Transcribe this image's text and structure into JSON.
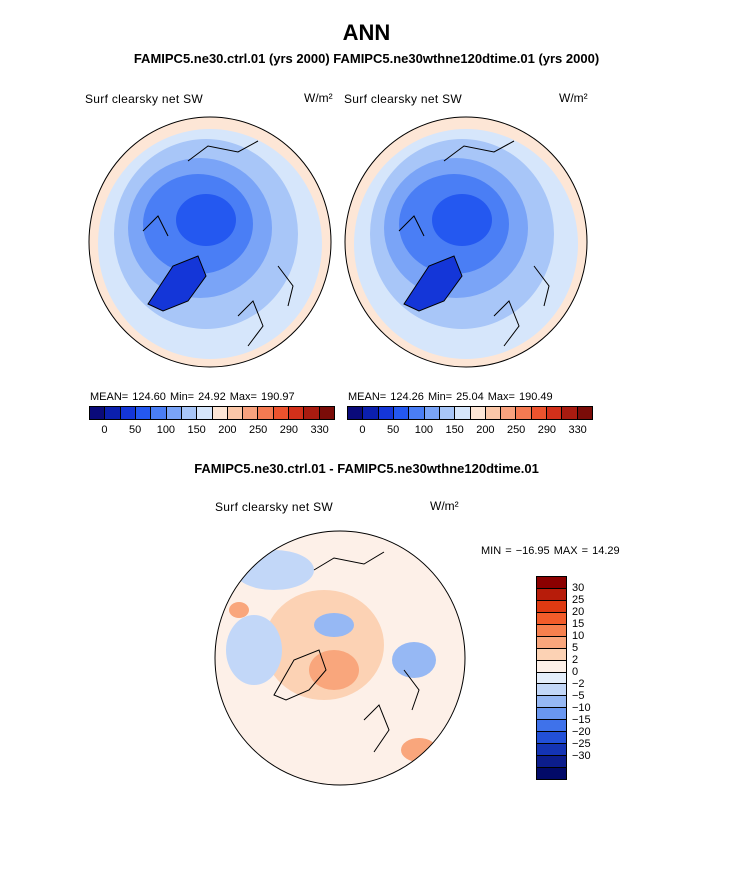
{
  "header": {
    "title": "ANN",
    "subtitle": "FAMIPC5.ne30.ctrl.01 (yrs 2000)   FAMIPC5.ne30wthne120dtime.01 (yrs 2000)"
  },
  "left_map": {
    "variable": "Surf clearsky net SW",
    "units": "W/m²",
    "stats": "MEAN= 124.60   Min=  24.92   Max= 190.97"
  },
  "right_map": {
    "variable": "Surf clearsky net SW",
    "units": "W/m²",
    "stats": "MEAN= 124.26   Min=  25.04   Max= 190.49"
  },
  "top_colorbar": {
    "colors": [
      "#0a0a7a",
      "#0b1fae",
      "#1436d8",
      "#2458f0",
      "#4a7ef5",
      "#7aa4f7",
      "#a8c6f8",
      "#d6e6fb",
      "#fde6d6",
      "#fbc7a8",
      "#f8a27e",
      "#f47a52",
      "#ec532e",
      "#d2301a",
      "#a81b10",
      "#7a0c08"
    ],
    "labels": [
      "0",
      "50",
      "100",
      "150",
      "200",
      "250",
      "290",
      "330"
    ]
  },
  "diff": {
    "subtitle": "FAMIPC5.ne30.ctrl.01 - FAMIPC5.ne30wthne120dtime.01",
    "variable": "Surf clearsky net SW",
    "units": "W/m²",
    "stats": "MIN = −16.95 MAX =   14.29"
  },
  "diff_colorbar": {
    "colors": [
      "#8b0000",
      "#b71c0a",
      "#de3a12",
      "#f25c2a",
      "#f6804e",
      "#f9a67c",
      "#fcd2b4",
      "#fdf0e8",
      "#e4eefb",
      "#c2d7f8",
      "#96b8f4",
      "#6a97f0",
      "#3f72ea",
      "#2250d8",
      "#1434b4",
      "#0c1d8c",
      "#020a68"
    ],
    "labels": [
      "30",
      "25",
      "20",
      "15",
      "10",
      "5",
      "2",
      "0",
      "−2",
      "−5",
      "−10",
      "−15",
      "−20",
      "−25",
      "−30"
    ]
  }
}
